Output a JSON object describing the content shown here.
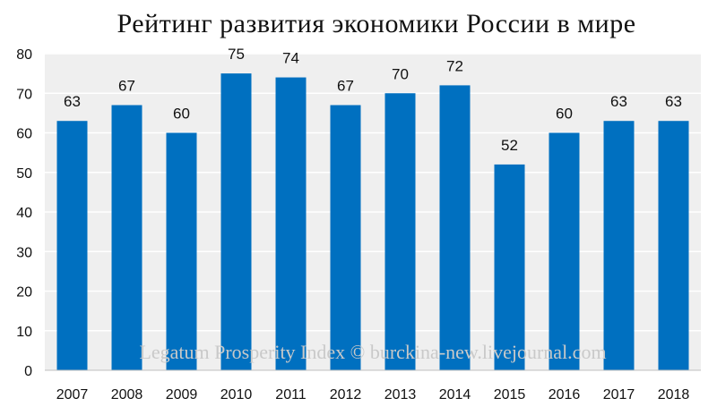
{
  "chart_data": {
    "type": "bar",
    "title": "Рейтинг развития экономики России в мире",
    "xlabel": "",
    "ylabel": "",
    "categories": [
      "2007",
      "2008",
      "2009",
      "2010",
      "2011",
      "2012",
      "2013",
      "2014",
      "2015",
      "2016",
      "2017",
      "2018"
    ],
    "values": [
      63,
      67,
      60,
      75,
      74,
      67,
      70,
      72,
      52,
      60,
      63,
      63
    ],
    "ylim": [
      0,
      80
    ],
    "yticks": [
      0,
      10,
      20,
      30,
      40,
      50,
      60,
      70,
      80
    ],
    "grid": true,
    "legend": "none",
    "bar_color": "#0070c0",
    "plot_background": "#efefef",
    "grid_color": "#ffffff",
    "watermark": "Legatum Prosperity Index © burckina-new.livejournal.com"
  }
}
